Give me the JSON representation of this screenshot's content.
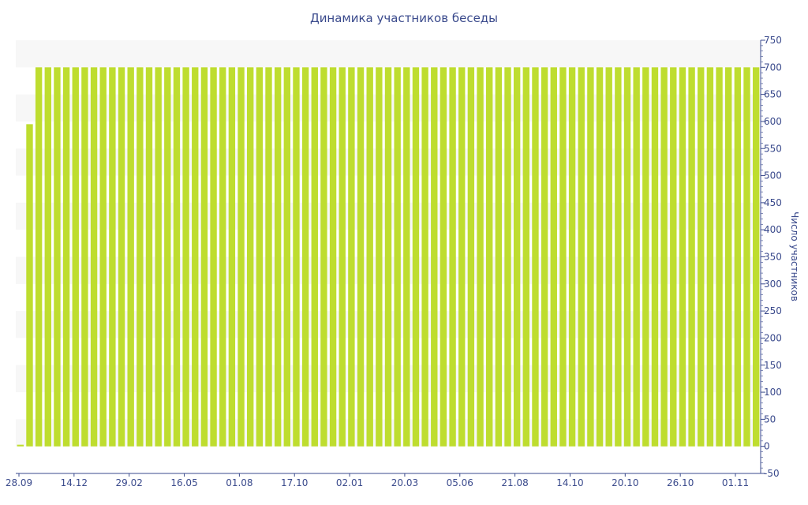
{
  "chart_data": {
    "type": "bar",
    "title": "Динамика участников беседы",
    "xlabel": "",
    "ylabel": "Число участников",
    "ylim": [
      -50,
      750
    ],
    "y_ticks": [
      750,
      700,
      650,
      600,
      550,
      500,
      450,
      400,
      350,
      300,
      250,
      200,
      150,
      100,
      50,
      0,
      -50
    ],
    "x_tick_labels": [
      "28.09",
      "14.12",
      "29.02",
      "16.05",
      "01.08",
      "17.10",
      "02.01",
      "20.03",
      "05.06",
      "21.08",
      "14.10",
      "20.10",
      "26.10",
      "01.11"
    ],
    "y_axis_position": "right",
    "grid": false,
    "legend": "none",
    "bar_color": "#bedd2f",
    "axis_color": "#3a4a8c",
    "band_color": "#f7f7f7",
    "series": [
      {
        "values": [
          3,
          595,
          700,
          700,
          700,
          700,
          700,
          700,
          700,
          700,
          700,
          700,
          700,
          700,
          700,
          700,
          700,
          700,
          700,
          700,
          700,
          700,
          700,
          700,
          700,
          700,
          700,
          700,
          700,
          700,
          700,
          700,
          700,
          700,
          700,
          700,
          700,
          700,
          700,
          700,
          700,
          700,
          700,
          700,
          700,
          700,
          700,
          700,
          700,
          700,
          700,
          700,
          700,
          700,
          700,
          700,
          700,
          700,
          700,
          700,
          700,
          700,
          700,
          700,
          700,
          700,
          700,
          700,
          700,
          700,
          700,
          700,
          700,
          700,
          700,
          700,
          700,
          700,
          700,
          700,
          700
        ]
      }
    ]
  }
}
